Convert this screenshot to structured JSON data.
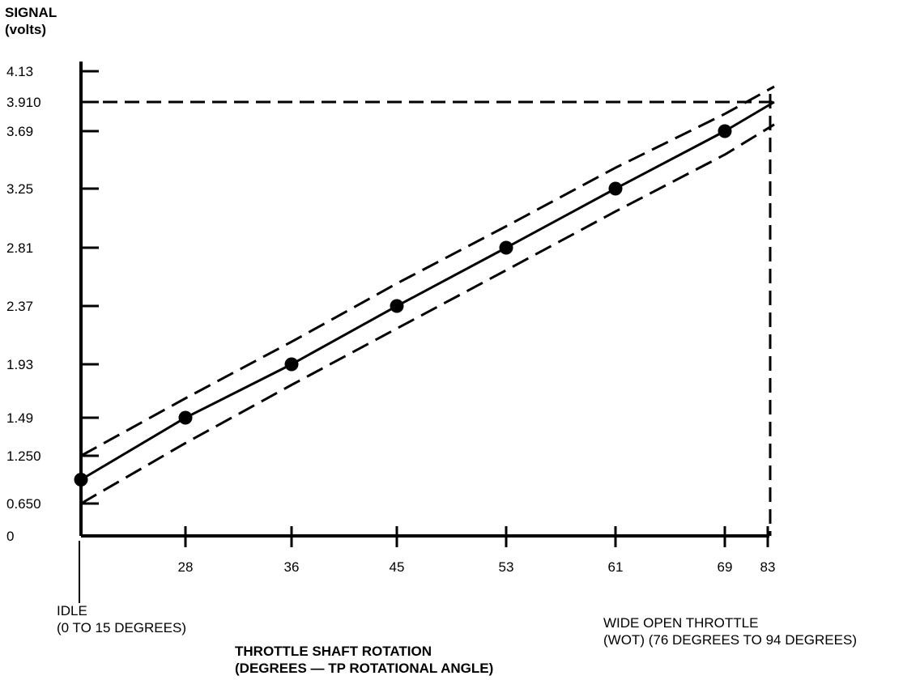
{
  "chart_data": {
    "type": "line",
    "ylabel": [
      "SIGNAL",
      "(volts)"
    ],
    "xlabel": [
      "THROTTLE SHAFT ROTATION",
      "(DEGREES — TP ROTATIONAL ANGLE)"
    ],
    "y_ticks": [
      "0",
      "0.650",
      "1.250",
      "1.49",
      "1.93",
      "2.37",
      "2.81",
      "3.25",
      "3.69",
      "3.910",
      "4.13"
    ],
    "x_ticks": [
      "28",
      "36",
      "45",
      "53",
      "61",
      "69",
      "83"
    ],
    "annotations": {
      "idle": [
        "IDLE",
        "(0 TO 15 DEGREES)"
      ],
      "wot": [
        "WIDE OPEN THROTTLE",
        "(WOT) (76 DEGREES TO 94 DEGREES)"
      ]
    },
    "x": [
      15,
      28,
      36,
      45,
      53,
      61,
      69
    ],
    "series": [
      {
        "values": [
          0.95,
          1.49,
          1.93,
          2.37,
          2.81,
          3.25,
          3.69
        ],
        "style": "solid",
        "markers": true,
        "end": {
          "x": 83,
          "y": 3.91
        }
      },
      {
        "values": [
          1.25,
          1.65,
          2.1,
          2.54,
          2.97,
          3.41,
          3.82
        ],
        "style": "dashed",
        "markers": false,
        "end": {
          "x": 83,
          "y": 4.02
        }
      },
      {
        "values": [
          0.65,
          1.33,
          1.76,
          2.2,
          2.64,
          3.08,
          3.51
        ],
        "style": "dashed",
        "markers": false,
        "end": {
          "x": 83,
          "y": 3.74
        }
      }
    ],
    "reference_lines": {
      "y": 3.91,
      "x": 83
    },
    "grid": false,
    "colors": {
      "line": "#000000",
      "background": "#ffffff"
    }
  }
}
